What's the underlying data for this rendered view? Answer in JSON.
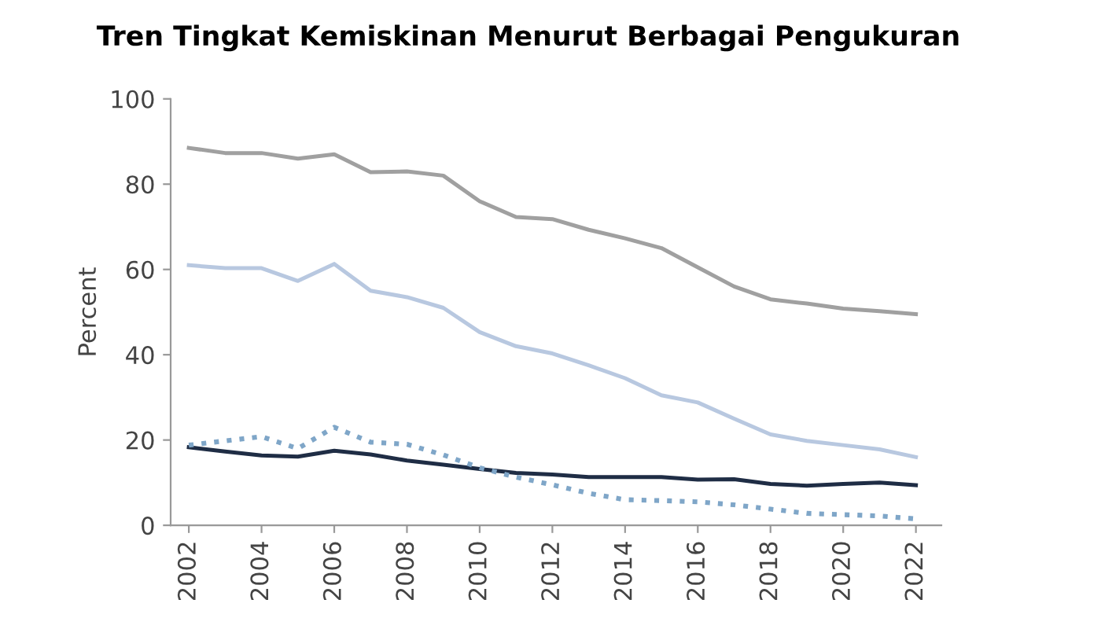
{
  "chart_data": {
    "type": "line",
    "title": "Tren Tingkat Kemiskinan Menurut Berbagai Pengukuran",
    "ylabel": "Percent",
    "x": [
      2002,
      2003,
      2004,
      2005,
      2006,
      2007,
      2008,
      2009,
      2010,
      2011,
      2012,
      2013,
      2014,
      2015,
      2016,
      2017,
      2018,
      2019,
      2020,
      2021,
      2022
    ],
    "series": [
      {
        "color": "#a0a0a0",
        "values": [
          88.5,
          87.3,
          87.3,
          86,
          87,
          82.8,
          83,
          82,
          76,
          72.3,
          71.8,
          69.3,
          67.3,
          65,
          60.5,
          56,
          53,
          52,
          50.8,
          50.2,
          49.5
        ]
      },
      {
        "color": "#b8c8e0",
        "values": [
          61,
          60.3,
          60.3,
          57.3,
          61.3,
          55,
          53.5,
          51,
          45.3,
          42,
          40.3,
          37.5,
          34.5,
          30.5,
          28.8,
          25,
          21.3,
          19.8,
          18.8,
          17.8,
          16
        ]
      },
      {
        "color": "#1f2d45",
        "values": [
          18.3,
          17.3,
          16.4,
          16.1,
          17.5,
          16.6,
          15.2,
          14.2,
          13.2,
          12.3,
          11.9,
          11.3,
          11.3,
          11.3,
          10.7,
          10.8,
          9.7,
          9.3,
          9.7,
          10,
          9.4
        ]
      },
      {
        "color": "#7fa6c8",
        "line_style": "dotted",
        "values": [
          18.8,
          19.8,
          20.8,
          18,
          23,
          19.5,
          19,
          16.5,
          13.5,
          11.3,
          9.5,
          7.5,
          6,
          5.8,
          5.5,
          4.8,
          3.8,
          2.8,
          2.5,
          2.2,
          1.5
        ]
      }
    ],
    "xlim": [
      2001.5,
      2022.7
    ],
    "xticks": [
      2002,
      2004,
      2006,
      2008,
      2010,
      2012,
      2014,
      2016,
      2018,
      2020,
      2022
    ],
    "ylim": [
      0,
      100
    ],
    "yticks": [
      0,
      20,
      40,
      60,
      80,
      100
    ],
    "grid": false,
    "legend": false
  }
}
